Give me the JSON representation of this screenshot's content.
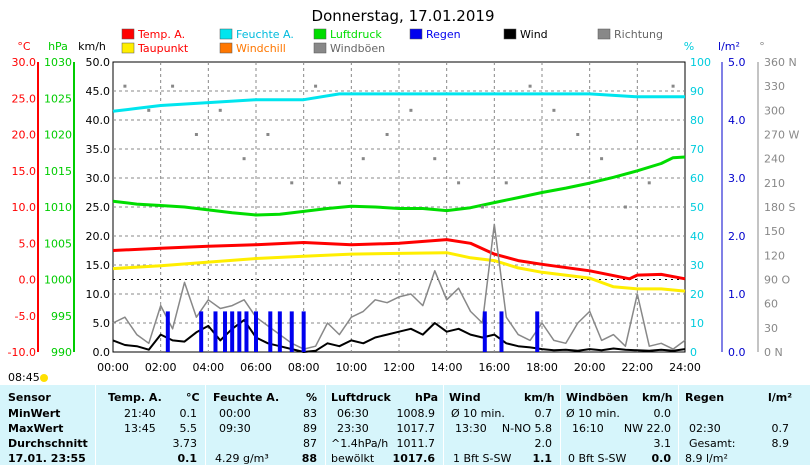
{
  "title": "Donnerstag, 17.01.2019",
  "legend": [
    {
      "label": "Temp. A.",
      "color": "#ff0000"
    },
    {
      "label": "Feuchte A.",
      "color": "#00e5ee"
    },
    {
      "label": "Luftdruck",
      "color": "#00dd00"
    },
    {
      "label": "Regen",
      "color": "#0000ee"
    },
    {
      "label": "Wind",
      "color": "#000000"
    },
    {
      "label": "Richtung",
      "color": "#888888"
    },
    {
      "label": "Taupunkt",
      "color": "#ffee00"
    },
    {
      "label": "Windchill",
      "color": "#ff7700"
    },
    {
      "label": "Windböen",
      "color": "#888888"
    }
  ],
  "axes": {
    "temp": {
      "unit": "°C",
      "ticks": [
        "30.0",
        "25.0",
        "20.0",
        "15.0",
        "10.0",
        "5.0",
        "0.0",
        "-5.0",
        "-10.0"
      ],
      "color": "#ff0000"
    },
    "pressure": {
      "unit": "hPa",
      "ticks": [
        "1030",
        "1025",
        "1020",
        "1015",
        "1010",
        "1005",
        "1000",
        "995",
        "990"
      ],
      "color": "#00cc00"
    },
    "wind": {
      "unit": "km/h",
      "ticks": [
        "50.0",
        "45.0",
        "40.0",
        "35.0",
        "30.0",
        "25.0",
        "20.0",
        "15.0",
        "10.0",
        "5.0",
        "0.0"
      ],
      "color": "#000000"
    },
    "humidity": {
      "unit": "%",
      "ticks": [
        "100",
        "90",
        "80",
        "70",
        "60",
        "50",
        "40",
        "30",
        "20",
        "10",
        "0"
      ],
      "color": "#00ccdd"
    },
    "rain": {
      "unit": "l/m²",
      "ticks": [
        "5.0",
        "4.0",
        "3.0",
        "2.0",
        "1.0",
        "0.0"
      ],
      "color": "#0000cc"
    },
    "direction": {
      "unit": "°",
      "ticks": [
        "360 N",
        "330",
        "300",
        "270 W",
        "240",
        "210",
        "180 S",
        "150",
        "120",
        "90 O",
        "60",
        "30",
        "0 N"
      ],
      "color": "#888888"
    },
    "time_ticks": [
      "00:00",
      "02:00",
      "04:00",
      "06:00",
      "08:00",
      "10:00",
      "12:00",
      "14:00",
      "16:00",
      "18:00",
      "20:00",
      "22:00",
      "24:00"
    ]
  },
  "sunrise_label": "08:45",
  "chart_data": {
    "type": "line",
    "title": "Donnerstag, 17.01.2019",
    "x_unit": "hours",
    "x_range": [
      0,
      24
    ],
    "grid": true,
    "series": [
      {
        "name": "Temp. A.",
        "axis": "temp",
        "color": "#ff0000",
        "x": [
          0,
          2,
          4,
          6,
          8,
          10,
          12,
          14,
          15,
          16,
          17,
          18,
          20,
          21.67,
          22,
          23,
          24
        ],
        "y": [
          4.0,
          4.3,
          4.6,
          4.8,
          5.1,
          4.8,
          5.0,
          5.5,
          5.0,
          3.5,
          2.6,
          2.1,
          1.2,
          0.1,
          0.6,
          0.7,
          0.1
        ]
      },
      {
        "name": "Taupunkt",
        "axis": "temp",
        "color": "#ffee00",
        "x": [
          0,
          2,
          4,
          6,
          8,
          10,
          12,
          14,
          15,
          16,
          17,
          18,
          20,
          21,
          22,
          23,
          24
        ],
        "y": [
          1.5,
          1.9,
          2.4,
          2.9,
          3.2,
          3.5,
          3.6,
          3.7,
          3.0,
          2.6,
          1.6,
          1.0,
          0.2,
          -1.0,
          -1.3,
          -1.3,
          -1.6
        ]
      },
      {
        "name": "Feuchte A.",
        "axis": "humidity",
        "color": "#00e5ee",
        "x": [
          0,
          1,
          2,
          4,
          6,
          8,
          9.5,
          12,
          14,
          16,
          18,
          20,
          22,
          24
        ],
        "y": [
          83,
          84,
          85,
          86,
          87,
          87,
          89,
          89,
          89,
          89,
          89,
          89,
          88,
          88
        ]
      },
      {
        "name": "Luftdruck",
        "axis": "pressure",
        "color": "#00dd00",
        "x": [
          0,
          1,
          2,
          3,
          4,
          5,
          6,
          7,
          8,
          9,
          10,
          11,
          12,
          13,
          14,
          15,
          16,
          17,
          18,
          19,
          20,
          21,
          22,
          23,
          23.5,
          24
        ],
        "y": [
          1010.8,
          1010.4,
          1010.2,
          1010.0,
          1009.6,
          1009.2,
          1008.9,
          1009.0,
          1009.4,
          1009.8,
          1010.1,
          1010.0,
          1009.8,
          1009.8,
          1009.5,
          1009.9,
          1010.6,
          1011.3,
          1012.0,
          1012.6,
          1013.3,
          1014.1,
          1015.0,
          1016.0,
          1016.8,
          1016.9
        ]
      },
      {
        "name": "Wind",
        "axis": "wind",
        "color": "#000000",
        "x": [
          0,
          0.5,
          1,
          1.5,
          2,
          2.5,
          3,
          3.5,
          4,
          4.5,
          5,
          5.5,
          6,
          6.5,
          7,
          7.5,
          8,
          8.5,
          9,
          9.5,
          10,
          10.5,
          11,
          11.5,
          12,
          12.5,
          13,
          13.5,
          14,
          14.5,
          15,
          15.5,
          16,
          16.5,
          17,
          17.5,
          18,
          18.5,
          19,
          19.5,
          20,
          20.5,
          21,
          21.5,
          22,
          22.5,
          23,
          23.5,
          24
        ],
        "y": [
          2.0,
          1.2,
          1.0,
          0.4,
          3.0,
          2.0,
          1.8,
          3.4,
          4.5,
          2.0,
          4.0,
          5.5,
          2.5,
          1.5,
          1.0,
          0.5,
          0.0,
          0.2,
          1.5,
          1.0,
          2.0,
          1.5,
          2.5,
          3.0,
          3.5,
          4.0,
          3.0,
          5.0,
          3.5,
          4.0,
          3.0,
          2.5,
          3.0,
          1.5,
          1.0,
          0.8,
          0.5,
          0.3,
          0.4,
          0.2,
          0.5,
          0.3,
          0.6,
          0.4,
          0.3,
          0.2,
          0.4,
          0.2,
          0.5
        ]
      },
      {
        "name": "Windböen",
        "axis": "wind",
        "color": "#888888",
        "x": [
          0,
          0.5,
          1,
          1.5,
          2,
          2.5,
          3,
          3.5,
          4,
          4.5,
          5,
          5.5,
          6,
          6.5,
          7,
          7.5,
          8,
          8.5,
          9,
          9.5,
          10,
          10.5,
          11,
          11.5,
          12,
          12.5,
          13,
          13.5,
          14,
          14.5,
          15,
          15.5,
          16,
          16.5,
          17,
          17.5,
          18,
          18.5,
          19,
          19.5,
          20,
          20.5,
          21,
          21.5,
          22,
          22.5,
          23,
          23.5,
          24
        ],
        "y": [
          5.0,
          6.0,
          3.0,
          1.5,
          8.0,
          4.0,
          12.0,
          6.0,
          9.0,
          7.5,
          8.0,
          9.0,
          6.0,
          4.5,
          3.0,
          1.5,
          0.5,
          1.0,
          5.0,
          3.0,
          6.0,
          7.0,
          9.0,
          8.5,
          9.5,
          10.0,
          8.0,
          14.0,
          9.0,
          11.0,
          7.0,
          5.0,
          22.0,
          6.0,
          3.0,
          2.0,
          5.0,
          2.0,
          1.5,
          5.0,
          7.0,
          2.0,
          3.0,
          1.0,
          10.0,
          1.0,
          1.5,
          0.5,
          2.0
        ]
      },
      {
        "name": "Regen",
        "axis": "rain",
        "type": "bar",
        "color": "#0000ee",
        "x": [
          2.3,
          3.7,
          4.3,
          4.7,
          5.0,
          5.3,
          5.6,
          6.0,
          6.6,
          7.0,
          7.5,
          8.0,
          15.6,
          16.3,
          17.8
        ],
        "y": [
          0.7,
          0.7,
          0.7,
          0.7,
          0.7,
          0.7,
          0.7,
          0.7,
          0.7,
          0.7,
          0.7,
          0.7,
          0.7,
          0.7,
          0.7
        ]
      },
      {
        "name": "Richtung",
        "axis": "direction",
        "type": "scatter",
        "color": "#888888",
        "x": [
          0.5,
          1.5,
          2.5,
          3.5,
          4.5,
          5.5,
          6.5,
          7.5,
          8.5,
          9.5,
          10.5,
          11.5,
          12.5,
          13.5,
          14.5,
          15.5,
          16.5,
          17.5,
          18.5,
          19.5,
          20.5,
          21.5,
          22.5,
          23.5
        ],
        "y": [
          330,
          300,
          330,
          270,
          300,
          240,
          270,
          210,
          330,
          210,
          240,
          270,
          300,
          240,
          210,
          180,
          210,
          330,
          300,
          270,
          240,
          180,
          210,
          330
        ]
      }
    ]
  },
  "stats": {
    "headers": {
      "sensor": "Sensor",
      "temp": "Temp. A.",
      "temp_unit": "°C",
      "hum": "Feuchte A.",
      "hum_unit": "%",
      "press": "Luftdruck",
      "press_unit": "hPa",
      "wind": "Wind",
      "wind_unit": "km/h",
      "gust": "Windböen",
      "gust_unit": "km/h",
      "rain": "Regen",
      "rain_unit": "l/m²"
    },
    "rows": {
      "min": {
        "label": "MinWert",
        "temp_time": "21:40",
        "temp_val": "0.1",
        "hum_time": "00:00",
        "hum_val": "83",
        "press_time": "06:30",
        "press_val": "1008.9",
        "wind_time": "Ø 10 min.",
        "wind_val": "0.7",
        "gust_time": "Ø 10 min.",
        "gust_val": "0.0"
      },
      "max": {
        "label": "MaxWert",
        "temp_time": "13:45",
        "temp_val": "5.5",
        "hum_time": "09:30",
        "hum_val": "89",
        "press_time": "23:30",
        "press_val": "1017.7",
        "wind_time": "13:30",
        "wind_dir": "N-NO 5.8",
        "gust_time": "16:10",
        "gust_dir": "NW 22.0",
        "rain_time": "02:30",
        "rain_val": "0.7"
      },
      "avg": {
        "label": "Durchschnitt",
        "temp_val": "3.73",
        "hum_val": "87",
        "press_trend": "^1.4hPa/h",
        "press_val": "1011.7",
        "wind_val": "2.0",
        "gust_val": "3.1",
        "rain_label": "Gesamt:",
        "rain_val": "8.9"
      },
      "current": {
        "label": "17.01. 23:55",
        "temp_val": "0.1",
        "hum_extra": "4.29 g/m³",
        "hum_val": "88",
        "press_state": "bewölkt",
        "press_val": "1017.6",
        "wind_bft": "1 Bft S-SW",
        "wind_val": "1.1",
        "gust_bft": "0 Bft S-SW",
        "gust_val": "0.0",
        "rain_val": "8.9 l/m²"
      }
    }
  }
}
